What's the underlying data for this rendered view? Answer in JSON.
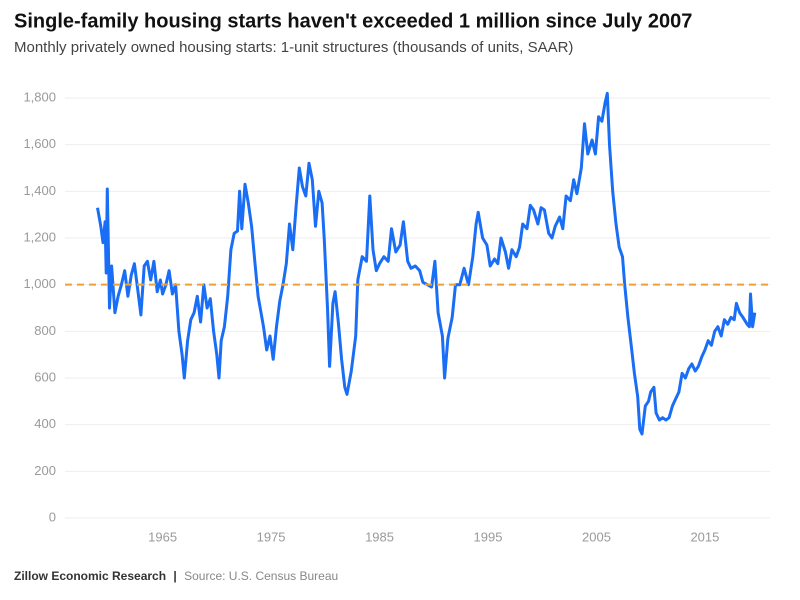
{
  "chart_data": {
    "type": "line",
    "title": "Single-family housing starts haven't exceeded 1 million since July 2007",
    "subtitle": "Monthly privately owned housing starts: 1-unit structures (thousands of units, SAAR)",
    "footer": {
      "org": "Zillow Economic Research",
      "source": "Source: U.S. Census Bureau"
    },
    "color": "#1a6ef5",
    "reference_line": {
      "value": 1000,
      "color": "#f0a030",
      "dashed": true
    },
    "grid": true,
    "xlim": [
      1956,
      2021
    ],
    "xticks": [
      1965,
      1975,
      1985,
      1995,
      2005,
      2015
    ],
    "ylim": [
      0,
      1800
    ],
    "yticks": [
      0,
      200,
      400,
      600,
      800,
      {
        "value": 1000,
        "label": "1,000"
      },
      {
        "value": 1200,
        "label": "1,200"
      },
      {
        "value": 1400,
        "label": "1,400"
      },
      {
        "value": 1600,
        "label": "1,600"
      },
      {
        "value": 1800,
        "label": "1,800"
      }
    ],
    "x": [
      1959.0,
      1959.3,
      1959.5,
      1959.7,
      1959.8,
      1959.9,
      1960.1,
      1960.3,
      1960.6,
      1960.9,
      1961.2,
      1961.5,
      1961.8,
      1962.1,
      1962.4,
      1962.7,
      1963.0,
      1963.3,
      1963.6,
      1963.9,
      1964.2,
      1964.5,
      1964.8,
      1965.0,
      1965.3,
      1965.6,
      1965.9,
      1966.2,
      1966.5,
      1966.8,
      1967.0,
      1967.3,
      1967.6,
      1967.9,
      1968.2,
      1968.5,
      1968.8,
      1969.1,
      1969.4,
      1969.7,
      1970.0,
      1970.2,
      1970.4,
      1970.7,
      1971.0,
      1971.3,
      1971.6,
      1971.9,
      1972.1,
      1972.3,
      1972.6,
      1972.9,
      1973.2,
      1973.5,
      1973.8,
      1974.0,
      1974.3,
      1974.6,
      1974.9,
      1975.2,
      1975.5,
      1975.8,
      1976.1,
      1976.4,
      1976.7,
      1977.0,
      1977.3,
      1977.6,
      1977.9,
      1978.2,
      1978.5,
      1978.8,
      1979.1,
      1979.4,
      1979.7,
      1979.9,
      1980.2,
      1980.4,
      1980.7,
      1980.9,
      1981.2,
      1981.5,
      1981.8,
      1982.0,
      1982.4,
      1982.8,
      1983.0,
      1983.4,
      1983.8,
      1984.1,
      1984.4,
      1984.7,
      1985.0,
      1985.4,
      1985.8,
      1986.1,
      1986.5,
      1986.9,
      1987.2,
      1987.6,
      1987.9,
      1988.3,
      1988.7,
      1989.0,
      1989.4,
      1989.8,
      1990.1,
      1990.4,
      1990.8,
      1991.0,
      1991.3,
      1991.7,
      1992.0,
      1992.4,
      1992.8,
      1993.2,
      1993.6,
      1993.9,
      1994.1,
      1994.5,
      1994.9,
      1995.2,
      1995.6,
      1995.9,
      1996.2,
      1996.6,
      1996.9,
      1997.2,
      1997.6,
      1997.9,
      1998.2,
      1998.6,
      1998.9,
      1999.2,
      1999.6,
      1999.9,
      2000.2,
      2000.6,
      2000.9,
      2001.2,
      2001.6,
      2001.9,
      2002.2,
      2002.6,
      2002.9,
      2003.2,
      2003.6,
      2003.9,
      2004.2,
      2004.6,
      2004.9,
      2005.2,
      2005.5,
      2005.8,
      2006.0,
      2006.2,
      2006.5,
      2006.8,
      2007.1,
      2007.4,
      2007.6,
      2007.9,
      2008.2,
      2008.5,
      2008.8,
      2009.0,
      2009.2,
      2009.5,
      2009.8,
      2010.0,
      2010.3,
      2010.5,
      2010.8,
      2011.1,
      2011.4,
      2011.7,
      2012.0,
      2012.3,
      2012.6,
      2012.9,
      2013.2,
      2013.5,
      2013.8,
      2014.1,
      2014.4,
      2014.7,
      2015.0,
      2015.3,
      2015.6,
      2015.9,
      2016.2,
      2016.5,
      2016.8,
      2017.1,
      2017.4,
      2017.7,
      2017.9,
      2018.2,
      2018.5,
      2018.9,
      2019.1,
      2019.2,
      2019.4,
      2019.6
    ],
    "values": [
      1330,
      1250,
      1180,
      1270,
      1050,
      1410,
      900,
      1080,
      880,
      950,
      1000,
      1060,
      950,
      1040,
      1090,
      980,
      870,
      1080,
      1100,
      1020,
      1100,
      970,
      1020,
      960,
      1000,
      1060,
      960,
      1000,
      800,
      700,
      600,
      760,
      850,
      880,
      950,
      840,
      1000,
      900,
      940,
      800,
      700,
      600,
      760,
      820,
      950,
      1150,
      1220,
      1230,
      1400,
      1240,
      1430,
      1350,
      1250,
      1100,
      950,
      900,
      820,
      720,
      780,
      680,
      820,
      930,
      1000,
      1090,
      1260,
      1150,
      1330,
      1500,
      1420,
      1380,
      1520,
      1450,
      1250,
      1400,
      1350,
      1200,
      900,
      650,
      920,
      970,
      840,
      680,
      560,
      530,
      630,
      780,
      1020,
      1120,
      1100,
      1380,
      1150,
      1060,
      1090,
      1120,
      1100,
      1240,
      1140,
      1170,
      1270,
      1100,
      1070,
      1080,
      1060,
      1010,
      1000,
      990,
      1100,
      880,
      780,
      600,
      770,
      860,
      1000,
      1000,
      1070,
      1000,
      1120,
      1260,
      1310,
      1200,
      1170,
      1080,
      1110,
      1090,
      1200,
      1140,
      1070,
      1150,
      1120,
      1160,
      1260,
      1240,
      1340,
      1320,
      1260,
      1330,
      1320,
      1220,
      1200,
      1250,
      1290,
      1240,
      1380,
      1360,
      1450,
      1390,
      1500,
      1690,
      1560,
      1620,
      1560,
      1720,
      1700,
      1780,
      1820,
      1600,
      1400,
      1260,
      1160,
      1120,
      1000,
      860,
      740,
      620,
      520,
      380,
      360,
      480,
      500,
      540,
      560,
      450,
      420,
      430,
      420,
      430,
      480,
      510,
      540,
      620,
      600,
      640,
      660,
      630,
      650,
      690,
      720,
      760,
      740,
      800,
      820,
      780,
      850,
      830,
      860,
      850,
      920,
      880,
      860,
      830,
      820,
      960,
      820,
      880
    ]
  }
}
